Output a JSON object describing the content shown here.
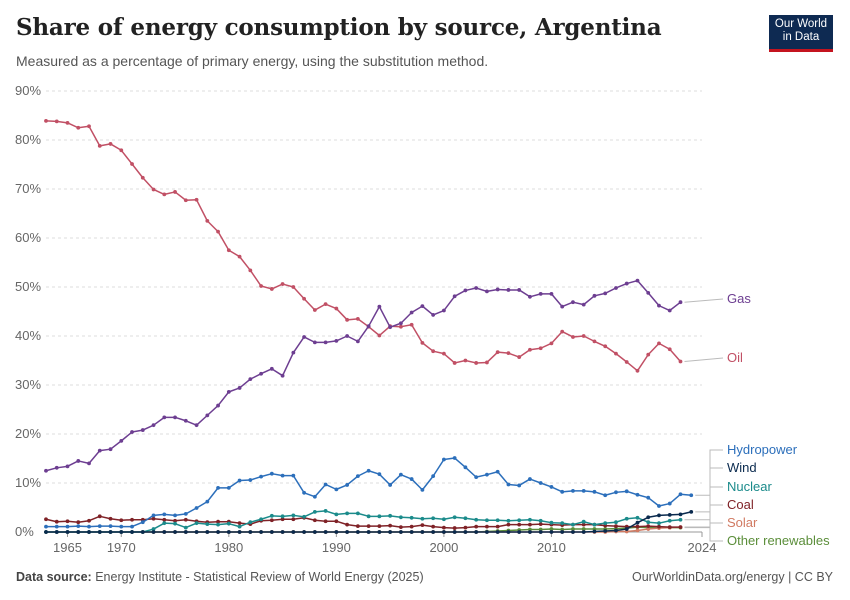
{
  "header": {
    "title": "Share of energy consumption by source, Argentina",
    "subtitle": "Measured as a percentage of primary energy, using the substitution method."
  },
  "logo": {
    "line1": "Our World",
    "line2": "in Data"
  },
  "footer": {
    "source_label": "Data source:",
    "source_text": "Energy Institute - Statistical Review of World Energy (2025)",
    "right": "OurWorldinData.org/energy | CC BY"
  },
  "chart_data": {
    "type": "line",
    "title": "Share of energy consumption by source, Argentina",
    "x_start": 1963,
    "x_end": 2024,
    "xlim": [
      1963,
      2024
    ],
    "ylim": [
      0,
      90
    ],
    "y_ticks": [
      0,
      10,
      20,
      30,
      40,
      50,
      60,
      70,
      80,
      90
    ],
    "y_tick_labels": [
      "0%",
      "10%",
      "20%",
      "30%",
      "40%",
      "50%",
      "60%",
      "70%",
      "80%",
      "90%"
    ],
    "x_ticks": [
      1965,
      1970,
      1980,
      1990,
      2000,
      2010,
      2024
    ],
    "x_tick_labels": [
      "1965",
      "1970",
      "1980",
      "1990",
      "2000",
      "2010",
      "2024"
    ],
    "grid": "horizontal dashed",
    "series": [
      {
        "name": "Gas",
        "color": "#6d3e91",
        "values": [
          12.5,
          13.1,
          13.4,
          14.5,
          14.0,
          16.6,
          16.9,
          18.6,
          20.4,
          20.8,
          21.8,
          23.4,
          23.4,
          22.7,
          21.8,
          23.8,
          25.8,
          28.6,
          29.4,
          31.2,
          32.3,
          33.3,
          31.9,
          36.6,
          39.8,
          38.7,
          38.7,
          39.0,
          40.0,
          38.9,
          42.0,
          46.0,
          41.8,
          42.6,
          44.8,
          46.1,
          44.3,
          45.2,
          48.1,
          49.3,
          49.8,
          49.1,
          49.5,
          49.4,
          49.4,
          48.0,
          48.6,
          48.6,
          46.0,
          46.9,
          46.4,
          48.2,
          48.7,
          49.8,
          50.7,
          51.3,
          48.8,
          46.2,
          45.2,
          46.9,
          0,
          0
        ]
      },
      {
        "name": "Oil",
        "color": "#c15065",
        "values": [
          83.9,
          83.8,
          83.5,
          82.5,
          82.8,
          78.8,
          79.2,
          77.9,
          75.1,
          72.3,
          69.9,
          68.9,
          69.4,
          67.7,
          67.8,
          63.5,
          61.3,
          57.5,
          56.2,
          53.4,
          50.2,
          49.6,
          50.6,
          50.0,
          47.6,
          45.3,
          46.5,
          45.6,
          43.3,
          43.5,
          41.9,
          40.1,
          42.0,
          41.9,
          42.3,
          38.6,
          36.9,
          36.4,
          34.5,
          35.0,
          34.5,
          34.6,
          36.7,
          36.5,
          35.7,
          37.2,
          37.5,
          38.5,
          40.9,
          39.8,
          40.0,
          38.9,
          37.9,
          36.4,
          34.7,
          32.9,
          36.2,
          38.5,
          37.3,
          34.8,
          0,
          0
        ]
      },
      {
        "name": "Hydropower",
        "color": "#2c6fbb",
        "values": [
          1.1,
          1.1,
          1.1,
          1.2,
          1.1,
          1.2,
          1.2,
          1.1,
          1.1,
          2.0,
          3.4,
          3.6,
          3.4,
          3.7,
          4.9,
          6.2,
          9.0,
          9.0,
          10.5,
          10.6,
          11.3,
          11.9,
          11.5,
          11.5,
          8.0,
          7.2,
          9.7,
          8.7,
          9.6,
          11.4,
          12.5,
          11.8,
          9.6,
          11.7,
          10.8,
          8.6,
          11.4,
          14.8,
          15.1,
          13.2,
          11.2,
          11.7,
          12.3,
          9.7,
          9.5,
          10.8,
          10.0,
          9.2,
          8.2,
          8.4,
          8.4,
          8.2,
          7.5,
          8.1,
          8.3,
          7.6,
          7.0,
          5.3,
          5.8,
          7.7,
          7.5,
          0
        ]
      },
      {
        "name": "Wind",
        "color": "#0a2a4e",
        "values": [
          0,
          0,
          0,
          0,
          0,
          0,
          0,
          0,
          0,
          0,
          0,
          0,
          0,
          0,
          0,
          0,
          0,
          0,
          0,
          0,
          0,
          0,
          0,
          0,
          0,
          0,
          0,
          0,
          0,
          0,
          0,
          0,
          0,
          0,
          0,
          0,
          0,
          0,
          0,
          0,
          0,
          0,
          0,
          0,
          0,
          0,
          0,
          0,
          0,
          0,
          0,
          0.1,
          0.2,
          0.3,
          0.6,
          1.9,
          3.0,
          3.4,
          3.5,
          3.6,
          4.1,
          0
        ]
      },
      {
        "name": "Nuclear",
        "color": "#1b8b8b",
        "values": [
          0,
          0,
          0,
          0,
          0,
          0,
          0,
          0,
          0,
          0,
          0.6,
          1.8,
          1.7,
          0.9,
          1.8,
          1.6,
          1.5,
          1.7,
          1.1,
          2.0,
          2.6,
          3.3,
          3.2,
          3.4,
          3.1,
          4.1,
          4.3,
          3.6,
          3.8,
          3.8,
          3.2,
          3.2,
          3.3,
          3.0,
          2.9,
          2.7,
          2.8,
          2.6,
          3.0,
          2.8,
          2.5,
          2.4,
          2.4,
          2.3,
          2.4,
          2.5,
          2.3,
          1.9,
          1.8,
          1.5,
          2.1,
          1.5,
          1.8,
          2.0,
          2.7,
          2.9,
          2.0,
          1.8,
          2.3,
          2.5,
          0,
          0
        ]
      },
      {
        "name": "Coal",
        "color": "#7f2227",
        "values": [
          2.6,
          2.1,
          2.2,
          2.0,
          2.3,
          3.2,
          2.7,
          2.4,
          2.5,
          2.5,
          2.7,
          2.5,
          2.3,
          2.5,
          2.2,
          2.0,
          2.1,
          2.1,
          1.8,
          1.6,
          2.3,
          2.4,
          2.6,
          2.6,
          2.9,
          2.4,
          2.2,
          2.2,
          1.5,
          1.2,
          1.2,
          1.2,
          1.3,
          1.0,
          1.1,
          1.4,
          1.1,
          0.9,
          0.8,
          0.9,
          1.1,
          1.1,
          1.1,
          1.5,
          1.5,
          1.5,
          1.6,
          1.5,
          1.4,
          1.5,
          1.5,
          1.5,
          1.3,
          1.2,
          1.1,
          1.1,
          1.2,
          1.1,
          1.0,
          1.0,
          0,
          0
        ]
      },
      {
        "name": "Solar",
        "color": "#d17a62",
        "values": [
          0,
          0,
          0,
          0,
          0,
          0,
          0,
          0,
          0,
          0,
          0,
          0,
          0,
          0,
          0,
          0,
          0,
          0,
          0,
          0,
          0,
          0,
          0,
          0,
          0,
          0,
          0,
          0,
          0,
          0,
          0,
          0,
          0,
          0,
          0,
          0,
          0,
          0,
          0,
          0,
          0,
          0,
          0,
          0,
          0,
          0,
          0,
          0,
          0,
          0,
          0,
          0,
          0,
          0.1,
          0.1,
          0.3,
          0.6,
          0.8,
          0.9,
          1.0,
          0,
          0
        ]
      },
      {
        "name": "Other renewables",
        "color": "#5b8e3a",
        "values": [
          0,
          0,
          0,
          0,
          0,
          0,
          0,
          0,
          0,
          0,
          0,
          0,
          0,
          0,
          0,
          0,
          0,
          0,
          0,
          0,
          0,
          0,
          0,
          0,
          0,
          0,
          0,
          0,
          0,
          0,
          0,
          0,
          0,
          0,
          0,
          0,
          0,
          0,
          0,
          0,
          0,
          0.1,
          0.2,
          0.3,
          0.4,
          0.5,
          0.5,
          0.6,
          0.5,
          0.6,
          0.6,
          0.6,
          0.6,
          0.7,
          0.8,
          1.0,
          0.9,
          0.9,
          0.9,
          0.9,
          0,
          0
        ]
      }
    ],
    "series_lengths": [
      60,
      60,
      61,
      61,
      60,
      60,
      60,
      60
    ]
  }
}
